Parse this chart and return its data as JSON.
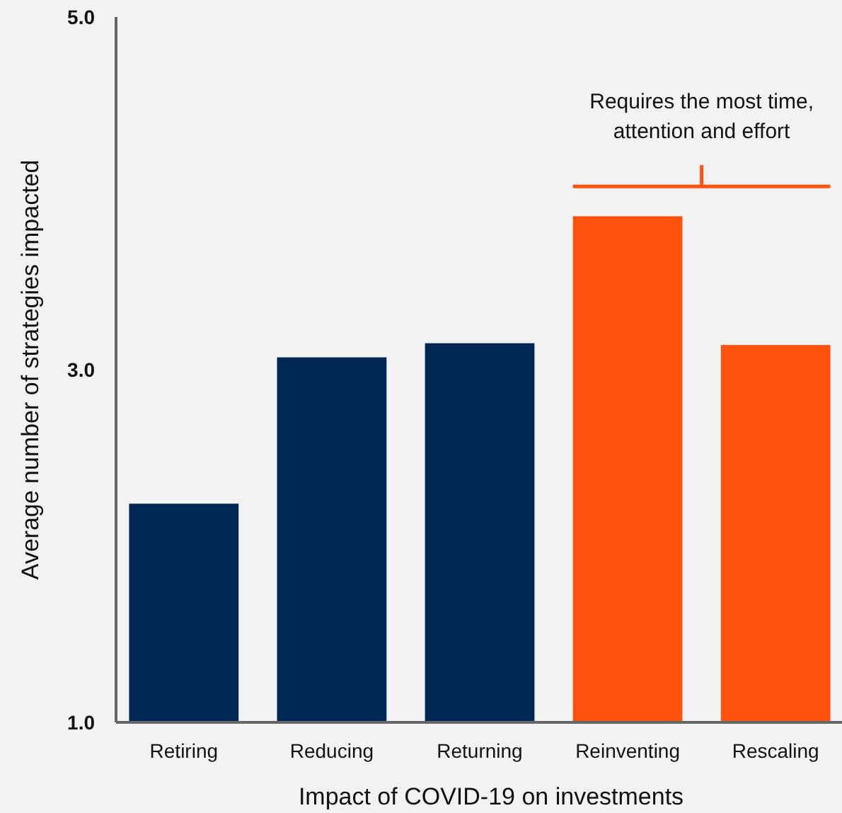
{
  "chart_data": {
    "type": "bar",
    "xlabel": "Impact of COVID-19 on investments",
    "ylabel": "Average number of strategies impacted",
    "categories": [
      "Retiring",
      "Reducing",
      "Returning",
      "Reinventing",
      "Rescaling"
    ],
    "values": [
      2.24,
      3.07,
      3.15,
      3.87,
      3.14
    ],
    "colors": [
      "#002654",
      "#002654",
      "#002654",
      "#ff520d",
      "#ff520d"
    ],
    "ylim": [
      1,
      5
    ],
    "yticks": [
      {
        "value": 1,
        "label": "1.0"
      },
      {
        "value": 3,
        "label": "3.0"
      },
      {
        "value": 5,
        "label": "5.0"
      }
    ],
    "annotations": [
      "Requires the most time, attention and effort"
    ]
  }
}
